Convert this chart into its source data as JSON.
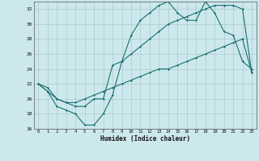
{
  "xlabel": "Humidex (Indice chaleur)",
  "ylabel": "",
  "bg_color": "#cce8ec",
  "grid_color": "#aacccc",
  "line_color": "#1a7070",
  "xlim": [
    -0.5,
    23.5
  ],
  "ylim": [
    16,
    33
  ],
  "xticks": [
    0,
    1,
    2,
    3,
    4,
    5,
    6,
    7,
    8,
    9,
    10,
    11,
    12,
    13,
    14,
    15,
    16,
    17,
    18,
    19,
    20,
    21,
    22,
    23
  ],
  "yticks": [
    16,
    18,
    20,
    22,
    24,
    26,
    28,
    30,
    32
  ],
  "series1": [
    22,
    21,
    19,
    18.5,
    18,
    16.5,
    16.5,
    18,
    20.5,
    25,
    28.5,
    30.5,
    31.5,
    32.5,
    33,
    31.5,
    30.5,
    30.5,
    33,
    31.5,
    29,
    28.5,
    25,
    24
  ],
  "series2": [
    22,
    21,
    20,
    19.5,
    19,
    19,
    20,
    20,
    24.5,
    25,
    26,
    27,
    28,
    29,
    30,
    30.5,
    31,
    31.5,
    32,
    32.5,
    32.5,
    32.5,
    32,
    23.5
  ],
  "series3": [
    22,
    21.5,
    20,
    19.5,
    19.5,
    20,
    20.5,
    21,
    21.5,
    22,
    22.5,
    23,
    23.5,
    24,
    24,
    24.5,
    25,
    25.5,
    26,
    26.5,
    27,
    27.5,
    28,
    23.5
  ]
}
